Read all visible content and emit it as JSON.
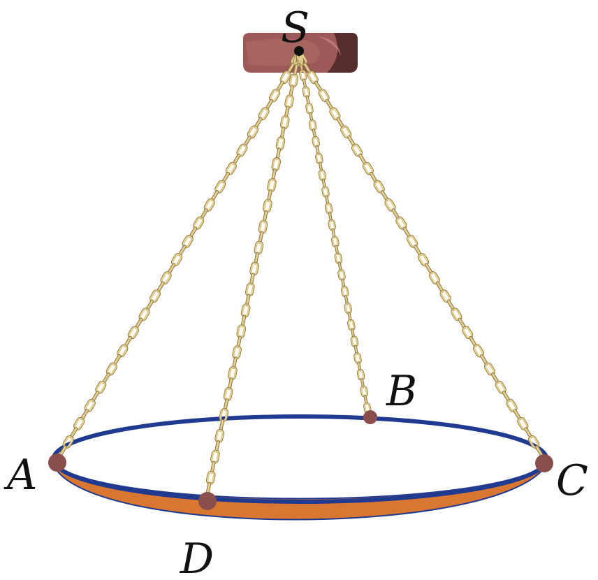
{
  "points": {
    "S": {
      "label": "S"
    },
    "A": {
      "label": "A"
    },
    "B": {
      "label": "B"
    },
    "C": {
      "label": "C"
    },
    "D": {
      "label": "D"
    }
  },
  "colors": {
    "chain": "#e2cf8e",
    "chain_edge": "#8a7440",
    "rim": "#1f3a8f",
    "plate": "#d97732",
    "mount": "#9b5a58",
    "mount_dark": "#4a2424",
    "joint": "#8a4f4c"
  }
}
